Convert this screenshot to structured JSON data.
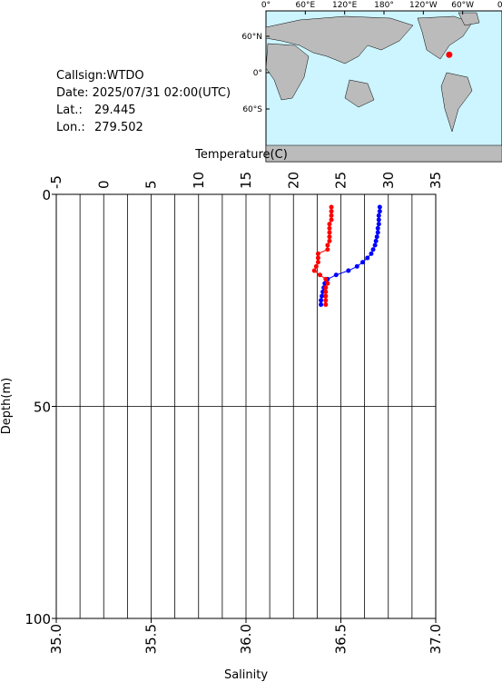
{
  "info": {
    "callsign": "Callsign:WTDO",
    "date": "Date:  2025/07/31 02:00(UTC)",
    "lat_label": "Lat.:",
    "lat": 29.445,
    "lon_label": "Lon.:",
    "lon": 279.502
  },
  "map": {
    "xlabels": [
      "0°",
      "60°E",
      "120°E",
      "180°",
      "120°W",
      "60°W",
      "0°"
    ],
    "ylabels": [
      "60°N",
      "0°",
      "60°S"
    ],
    "marker_color": "#ff0000"
  },
  "chart_data": {
    "type": "profile",
    "x2label": "Temperature(C)",
    "xlabel": "Salinity",
    "ylabel": "Depth(m)",
    "x2lim": [
      -5,
      35
    ],
    "x2ticks": [
      -5,
      0,
      5,
      10,
      15,
      20,
      25,
      30,
      35
    ],
    "x2grid": [
      -2.5,
      2.5,
      7.5,
      12.5,
      17.5,
      22.5,
      27.5,
      32.5
    ],
    "xlim": [
      35,
      37
    ],
    "xticks": [
      {
        "value": 35,
        "label": "35.0"
      },
      {
        "value": 35.5,
        "label": "35.5"
      },
      {
        "value": 36,
        "label": "36.0"
      },
      {
        "value": 36.5,
        "label": "36.5"
      },
      {
        "value": 37,
        "label": "37.0"
      }
    ],
    "ylim": [
      0,
      100
    ],
    "yticks": [
      0,
      50,
      100
    ],
    "grid": true,
    "depths": [
      3,
      4,
      5,
      6,
      7,
      8,
      9,
      10,
      11,
      12,
      13,
      14,
      15,
      16,
      17,
      18,
      19,
      20,
      21,
      22,
      23,
      24,
      25,
      26
    ],
    "series": [
      {
        "color": "#0000ff",
        "axis": "x2",
        "values": [
          29.1,
          29.1,
          29.0,
          29.0,
          29.0,
          28.9,
          28.9,
          28.8,
          28.7,
          28.6,
          28.4,
          28.2,
          27.8,
          27.3,
          26.7,
          25.8,
          24.5,
          23.6,
          23.3,
          23.2,
          23.1,
          23.0,
          22.9,
          22.9
        ]
      },
      {
        "color": "#ff0000",
        "axis": "x",
        "values": [
          36.45,
          36.45,
          36.45,
          36.45,
          36.44,
          36.44,
          36.44,
          36.44,
          36.44,
          36.43,
          36.43,
          36.38,
          36.38,
          36.38,
          36.37,
          36.36,
          36.39,
          36.42,
          36.43,
          36.42,
          36.42,
          36.42,
          36.42,
          36.42
        ]
      }
    ]
  }
}
